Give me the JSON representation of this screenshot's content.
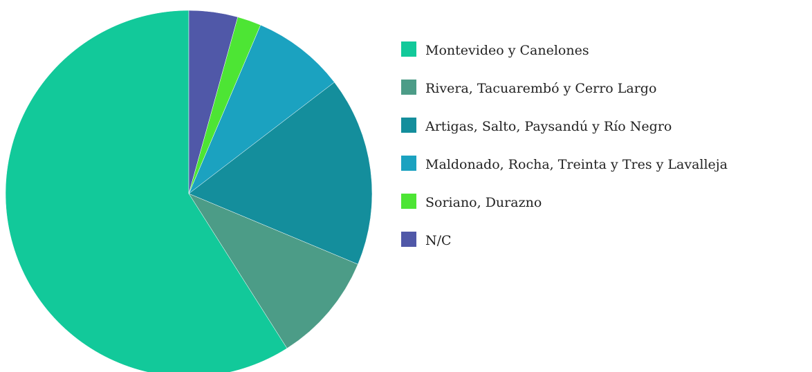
{
  "chart_data": {
    "type": "pie",
    "categories": [
      "Montevideo y Canelones",
      "Rivera, Tacuarembó y Cerro Largo",
      "Artigas, Salto, Paysandú y Río Negro",
      "Maldonado, Rocha, Treinta y Tres y Lavalleja",
      "Soriano, Durazno",
      "N/C"
    ],
    "values": [
      59,
      9.7,
      16.7,
      8.2,
      2.1,
      4.3
    ],
    "colors": [
      "#12c99a",
      "#4c9c87",
      "#148e9c",
      "#1ba2c0",
      "#4de534",
      "#5058a8"
    ],
    "legend": "right"
  }
}
